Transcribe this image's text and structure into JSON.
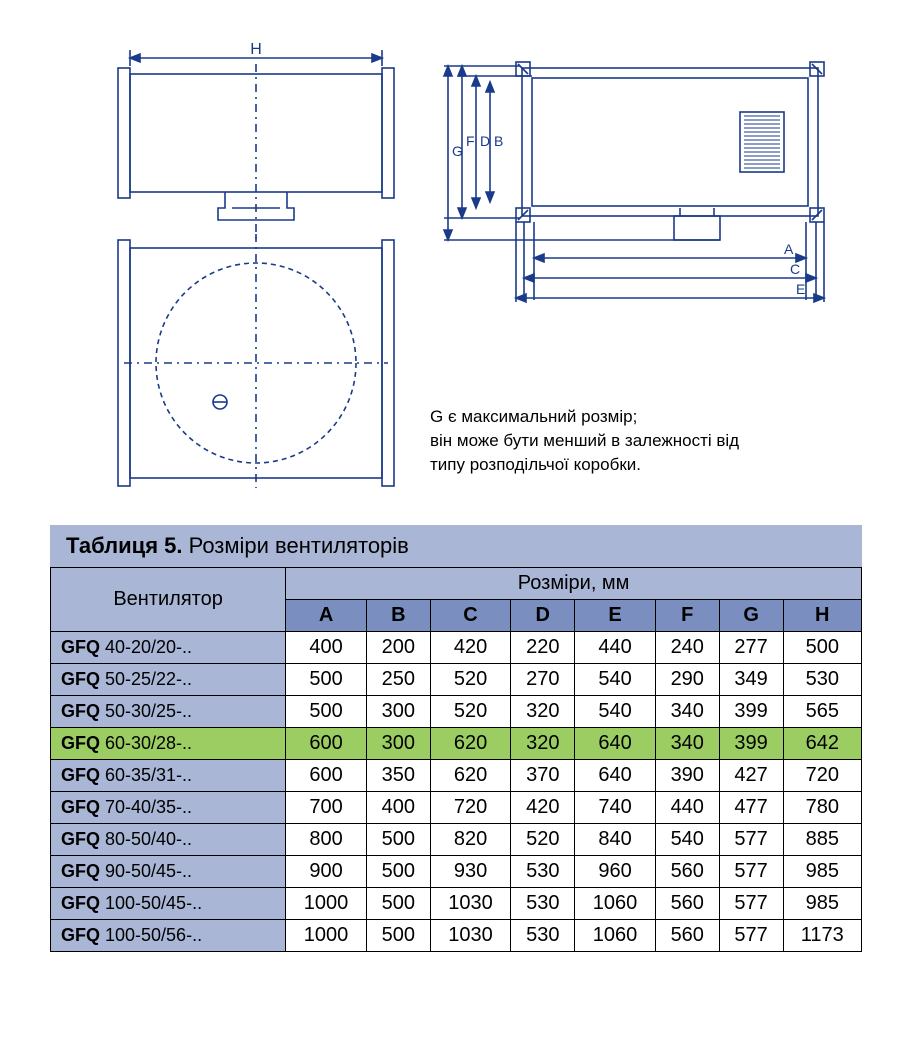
{
  "diagram": {
    "stroke": "#1a3a8a",
    "stroke_width": 1.6,
    "dim_labels": {
      "H": "H",
      "A": "A",
      "C": "C",
      "E": "E",
      "G": "G",
      "F": "F",
      "D": "D",
      "B": "B"
    }
  },
  "note": {
    "line1": "G є максимальний розмір;",
    "line2": "він може бути менший в залежності від",
    "line3": "типу розподільчої коробки."
  },
  "table": {
    "title_bold": "Таблиця 5.",
    "title_rest": " Розміри вентиляторів",
    "fan_header": "Вентилятор",
    "dim_header": "Розміри, мм",
    "columns": [
      "A",
      "B",
      "C",
      "D",
      "E",
      "F",
      "G",
      "H"
    ],
    "model_prefix": "GFQ",
    "rows": [
      {
        "model": "40-20/20-..",
        "vals": [
          400,
          200,
          420,
          220,
          440,
          240,
          277,
          500
        ],
        "highlight": false
      },
      {
        "model": "50-25/22-..",
        "vals": [
          500,
          250,
          520,
          270,
          540,
          290,
          349,
          530
        ],
        "highlight": false
      },
      {
        "model": "50-30/25-..",
        "vals": [
          500,
          300,
          520,
          320,
          540,
          340,
          399,
          565
        ],
        "highlight": false
      },
      {
        "model": "60-30/28-..",
        "vals": [
          600,
          300,
          620,
          320,
          640,
          340,
          399,
          642
        ],
        "highlight": true
      },
      {
        "model": "60-35/31-..",
        "vals": [
          600,
          350,
          620,
          370,
          640,
          390,
          427,
          720
        ],
        "highlight": false
      },
      {
        "model": "70-40/35-..",
        "vals": [
          700,
          400,
          720,
          420,
          740,
          440,
          477,
          780
        ],
        "highlight": false
      },
      {
        "model": "80-50/40-..",
        "vals": [
          800,
          500,
          820,
          520,
          840,
          540,
          577,
          885
        ],
        "highlight": false
      },
      {
        "model": "90-50/45-..",
        "vals": [
          900,
          500,
          930,
          530,
          960,
          560,
          577,
          985
        ],
        "highlight": false
      },
      {
        "model": "100-50/45-..",
        "vals": [
          1000,
          500,
          1030,
          530,
          1060,
          560,
          577,
          985
        ],
        "highlight": false
      },
      {
        "model": "100-50/56-..",
        "vals": [
          1000,
          500,
          1030,
          530,
          1060,
          560,
          577,
          1173
        ],
        "highlight": false
      }
    ],
    "colors": {
      "header_light": "#a9b6d6",
      "header_dark": "#7a8fc0",
      "highlight": "#9bcd62",
      "border": "#000000"
    },
    "fontsize": {
      "title": 22,
      "header": 20,
      "body": 20,
      "model": 18
    }
  }
}
